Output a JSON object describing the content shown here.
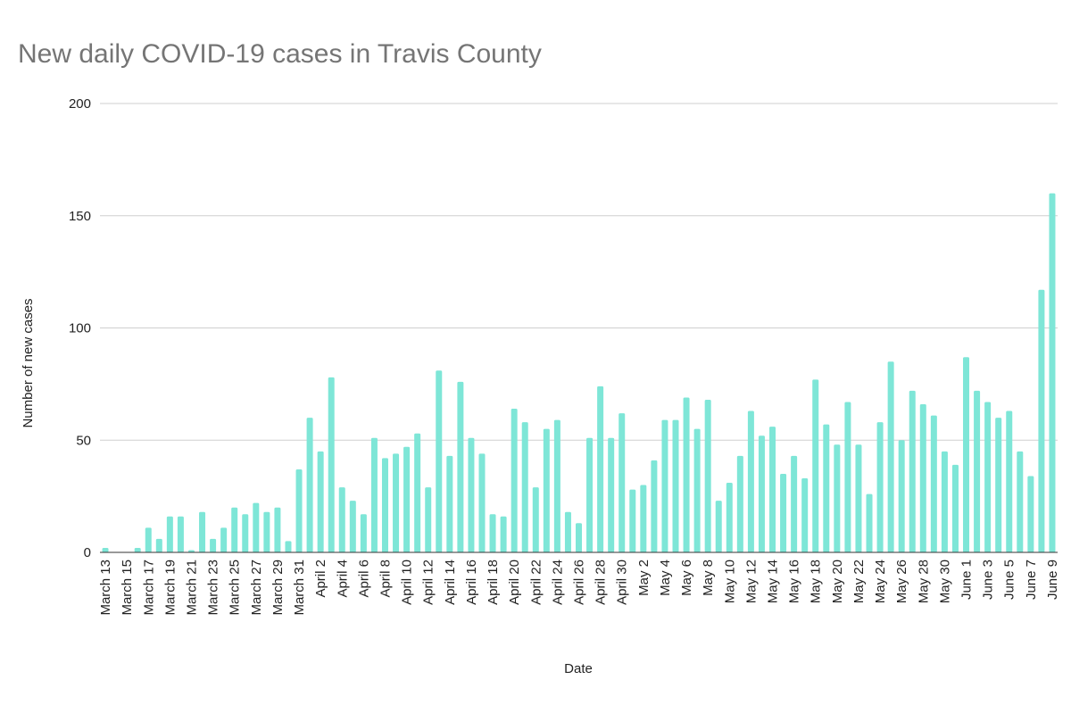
{
  "chart_data": {
    "type": "bar",
    "title": "New daily COVID-19 cases in Travis County",
    "x_label": "Date",
    "y_label": "Number of new cases",
    "categories": [
      "March 13",
      null,
      "March 15",
      null,
      "March 17",
      null,
      "March 19",
      null,
      "March 21",
      null,
      "March 23",
      null,
      "March 25",
      null,
      "March 27",
      null,
      "March 29",
      null,
      "March 31",
      null,
      "April 2",
      null,
      "April 4",
      null,
      "April 6",
      null,
      "April 8",
      null,
      "April 10",
      null,
      "April 12",
      null,
      "April 14",
      null,
      "April 16",
      null,
      "April 18",
      null,
      "April 20",
      null,
      "April 22",
      null,
      "April 24",
      null,
      "April 26",
      null,
      "April 28",
      null,
      "April 30",
      null,
      "May 2",
      null,
      "May 4",
      null,
      "May 6",
      null,
      "May 8",
      null,
      "May 10",
      null,
      "May 12",
      null,
      "May 14",
      null,
      "May 16",
      null,
      "May 18",
      null,
      "May 20",
      null,
      "May 22",
      null,
      "May 24",
      null,
      "May 26",
      null,
      "May 28",
      null,
      "May 30",
      null,
      "June 1",
      null,
      "June 3",
      null,
      "June 5",
      null,
      "June 7",
      null,
      "June 9"
    ],
    "values": [
      2,
      0,
      0,
      2,
      11,
      6,
      16,
      16,
      1,
      18,
      6,
      11,
      20,
      17,
      22,
      18,
      20,
      5,
      37,
      60,
      45,
      78,
      29,
      23,
      17,
      51,
      42,
      44,
      47,
      53,
      29,
      81,
      43,
      76,
      51,
      44,
      17,
      16,
      64,
      58,
      29,
      55,
      59,
      18,
      13,
      51,
      74,
      51,
      62,
      28,
      30,
      41,
      59,
      59,
      69,
      55,
      68,
      23,
      31,
      43,
      63,
      52,
      56,
      35,
      43,
      33,
      77,
      57,
      48,
      67,
      48,
      26,
      58,
      85,
      50,
      72,
      66,
      61,
      45,
      39,
      87,
      72,
      67,
      60,
      63,
      45,
      34,
      117,
      160
    ],
    "color": "#7ee6d7",
    "ylim": [
      0,
      200
    ],
    "yticks": [
      0,
      50,
      100,
      150,
      200
    ],
    "grid": true
  }
}
